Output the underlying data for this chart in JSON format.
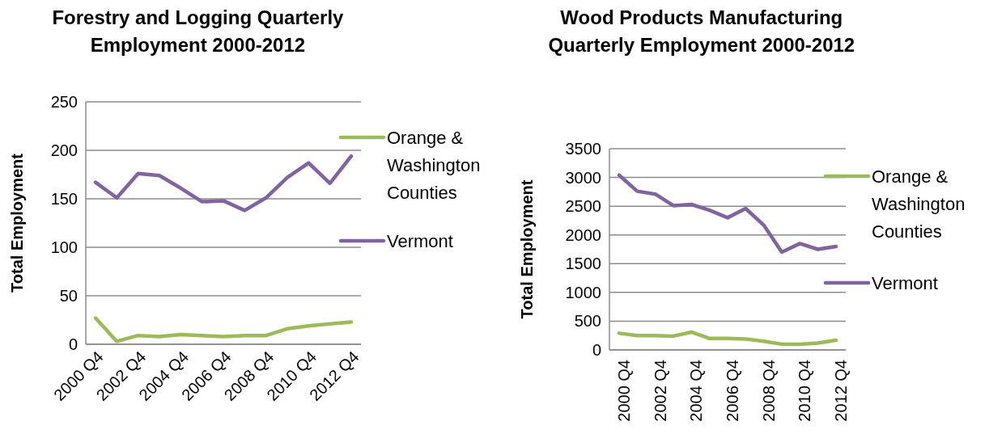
{
  "chart_data": [
    {
      "type": "line",
      "title": "Forestry and Logging Quarterly Employment 2000-2012",
      "ylabel": "Total Employment",
      "categories": [
        "2000 Q4",
        null,
        "2002 Q4",
        null,
        "2004 Q4",
        null,
        "2006 Q4",
        null,
        "2008 Q4",
        null,
        "2010 Q4",
        null,
        "2012 Q4"
      ],
      "series": [
        {
          "name": "Orange & Washington Counties",
          "color": "#9bbb59",
          "values": [
            27,
            3,
            9,
            8,
            10,
            9,
            8,
            9,
            9,
            16,
            19,
            21,
            23
          ]
        },
        {
          "name": "Vermont",
          "color": "#8064a2",
          "values": [
            167,
            151,
            176,
            174,
            161,
            147,
            148,
            138,
            151,
            172,
            187,
            166,
            194
          ]
        }
      ],
      "ylim": [
        0,
        250
      ],
      "yticks": [
        0,
        50,
        100,
        150,
        200,
        250
      ],
      "grid": "y",
      "legend": "right"
    },
    {
      "type": "line",
      "title": "Wood Products Manufacturing Quarterly Employment 2000-2012",
      "ylabel": "Total Employment",
      "categories": [
        "2000 Q4",
        null,
        "2002 Q4",
        null,
        "2004 Q4",
        null,
        "2006 Q4",
        null,
        "2008 Q4",
        null,
        "2010 Q4",
        null,
        "2012 Q4"
      ],
      "series": [
        {
          "name": "Orange & Washington Counties",
          "color": "#9bbb59",
          "values": [
            290,
            250,
            250,
            240,
            310,
            200,
            200,
            190,
            150,
            100,
            100,
            120,
            170
          ]
        },
        {
          "name": "Vermont",
          "color": "#8064a2",
          "values": [
            3040,
            2760,
            2710,
            2510,
            2530,
            2430,
            2300,
            2460,
            2170,
            1700,
            1850,
            1750,
            1800
          ]
        }
      ],
      "ylim": [
        0,
        3500
      ],
      "yticks": [
        0,
        500,
        1000,
        1500,
        2000,
        2500,
        3000,
        3500
      ],
      "grid": "y",
      "legend": "right"
    }
  ]
}
